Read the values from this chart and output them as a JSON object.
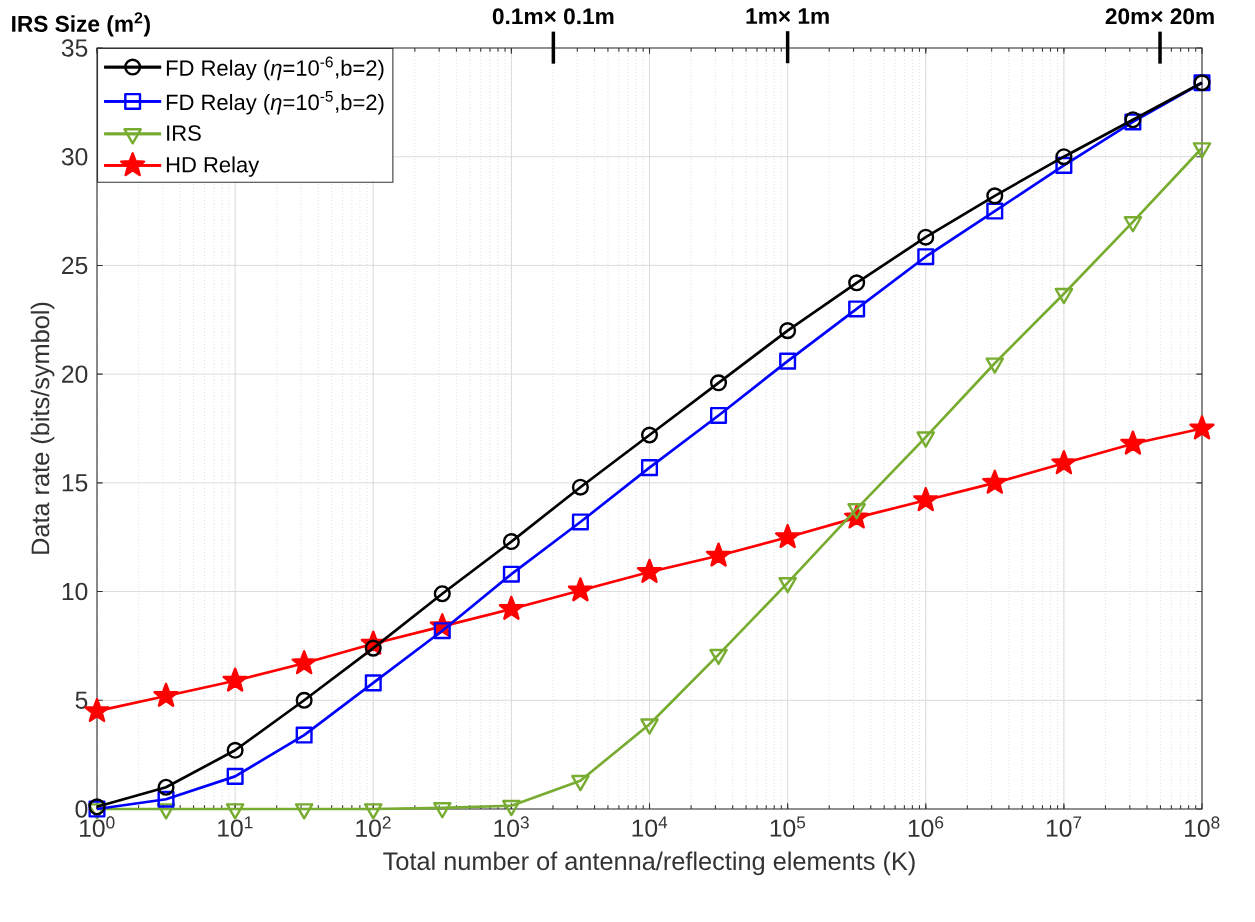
{
  "chart_data": {
    "type": "line",
    "xlabel": "Total number of antenna/reflecting elements (K)",
    "ylabel": "Data rate (bits/symbol)",
    "annotations": [
      "IRS Size (m$^{2}$)",
      "0.1m× 0.1m",
      "1m× 1m",
      "20m× 20m"
    ],
    "x": [
      1,
      3.16,
      10,
      31.6,
      100,
      316,
      1000,
      3160,
      10000,
      31600,
      100000,
      316000,
      1000000,
      3160000,
      10000000,
      31600000,
      100000000
    ],
    "series": [
      {
        "name": "FD Relay (*η*=10$^{-6}$,b=2)",
        "color": "#000000",
        "marker": "circle",
        "values": [
          0.1,
          1.0,
          2.7,
          5.0,
          7.4,
          9.9,
          12.3,
          14.8,
          17.2,
          19.6,
          22.0,
          24.2,
          26.3,
          28.2,
          30.0,
          31.7,
          33.4
        ]
      },
      {
        "name": "FD Relay (*η*=10$^{-5}$,b=2)",
        "color": "#0000ff",
        "marker": "square",
        "values": [
          0,
          0.45,
          1.5,
          3.4,
          5.8,
          8.2,
          10.8,
          13.2,
          15.7,
          18.1,
          20.6,
          23.0,
          25.4,
          27.5,
          29.6,
          31.6,
          33.4
        ]
      },
      {
        "name": "IRS",
        "color": "#77ac30",
        "marker": "triangle",
        "values": [
          0,
          0,
          0,
          0,
          0,
          0.05,
          0.15,
          1.3,
          3.9,
          7.1,
          10.4,
          13.8,
          17.1,
          20.5,
          23.7,
          27.0,
          30.4
        ]
      },
      {
        "name": "HD Relay",
        "color": "#ff0000",
        "marker": "star",
        "values": [
          4.5,
          5.2,
          5.9,
          6.7,
          7.6,
          8.4,
          9.2,
          10.05,
          10.9,
          11.65,
          12.5,
          13.4,
          14.2,
          15.0,
          15.9,
          16.8,
          17.5
        ]
      }
    ],
    "log": "x",
    "xlim": [
      1,
      100000000
    ],
    "ylim": [
      0,
      35
    ],
    "xticks": [
      {
        "value": 1,
        "label": "10$^{0}$"
      },
      {
        "value": 10,
        "label": "10$^{1}$"
      },
      {
        "value": 100,
        "label": "10$^{2}$"
      },
      {
        "value": 1000,
        "label": "10$^{3}$"
      },
      {
        "value": 10000,
        "label": "10$^{4}$"
      },
      {
        "value": 100000,
        "label": "10$^{5}$"
      },
      {
        "value": 1000000,
        "label": "10$^{6}$"
      },
      {
        "value": 10000000,
        "label": "10$^{7}$"
      },
      {
        "value": 100000000,
        "label": "10$^{8}$"
      }
    ],
    "yticks": [
      0,
      5,
      10,
      15,
      20,
      25,
      30,
      35
    ],
    "grid": true,
    "legend": "top left",
    "line_style": "solid"
  }
}
